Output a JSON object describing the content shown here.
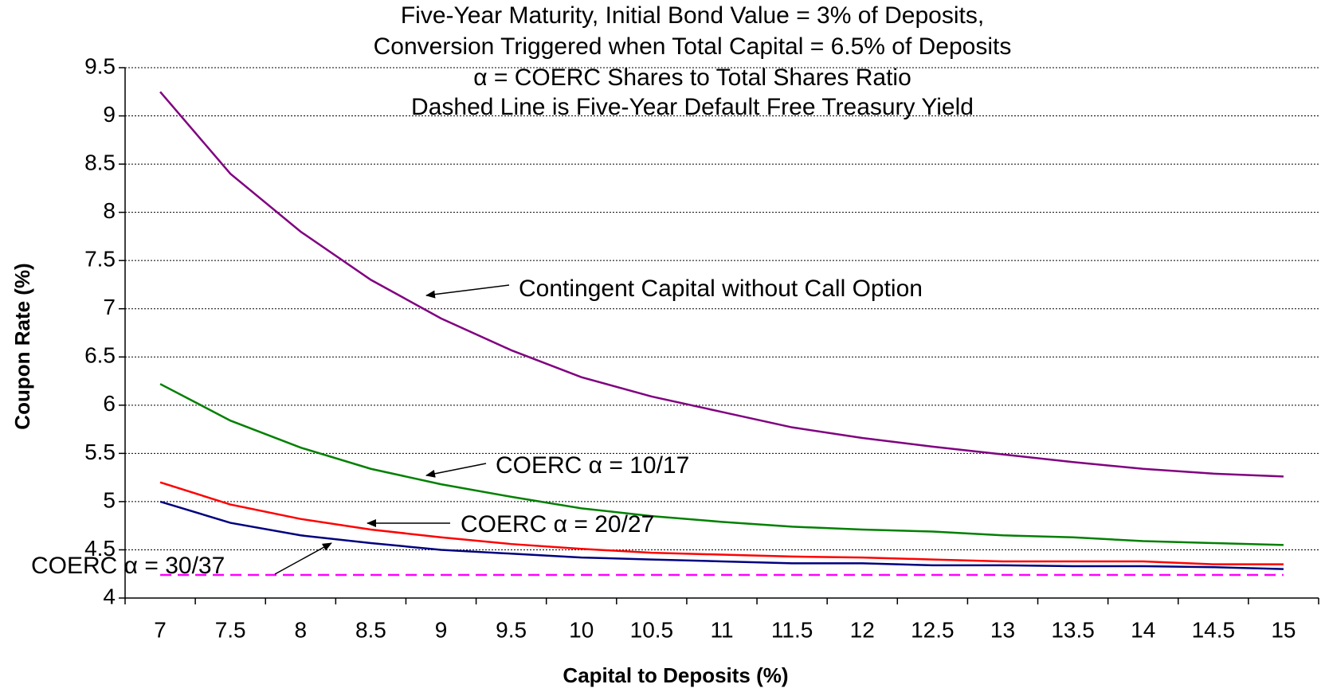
{
  "chart_data": {
    "type": "line",
    "title": [
      "Five-Year Maturity, Initial Bond Value = 3% of Deposits,",
      "Conversion Triggered when Total Capital = 6.5% of Deposits",
      "α = COERC Shares to Total Shares Ratio",
      "Dashed Line is Five-Year Default Free Treasury Yield"
    ],
    "x_label": "Capital to Deposits (%)",
    "y_label": "Coupon Rate (%)",
    "categories": [
      7,
      7.5,
      8,
      8.5,
      9,
      9.5,
      10,
      10.5,
      11,
      11.5,
      12,
      12.5,
      13,
      13.5,
      14,
      14.5,
      15
    ],
    "series": [
      {
        "color": "#800080",
        "values": [
          9.25,
          8.4,
          7.8,
          7.3,
          6.9,
          6.57,
          6.29,
          6.09,
          5.93,
          5.77,
          5.66,
          5.57,
          5.49,
          5.41,
          5.34,
          5.29,
          5.26
        ]
      },
      {
        "color": "#008000",
        "values": [
          6.22,
          5.84,
          5.56,
          5.34,
          5.18,
          5.05,
          4.93,
          4.85,
          4.79,
          4.74,
          4.71,
          4.69,
          4.65,
          4.63,
          4.59,
          4.57,
          4.55
        ]
      },
      {
        "color": "#ff0000",
        "values": [
          5.2,
          4.97,
          4.82,
          4.71,
          4.63,
          4.56,
          4.51,
          4.47,
          4.45,
          4.43,
          4.42,
          4.4,
          4.38,
          4.38,
          4.38,
          4.35,
          4.35
        ]
      },
      {
        "color": "#000080",
        "values": [
          5.0,
          4.78,
          4.65,
          4.57,
          4.5,
          4.46,
          4.42,
          4.4,
          4.38,
          4.36,
          4.36,
          4.34,
          4.34,
          4.33,
          4.33,
          4.32,
          4.3
        ]
      },
      {
        "color": "#ff00ff",
        "dashed": true,
        "values": [
          4.24,
          4.24,
          4.24,
          4.24,
          4.24,
          4.24,
          4.24,
          4.24,
          4.24,
          4.24,
          4.24,
          4.24,
          4.24,
          4.24,
          4.24,
          4.24,
          4.24
        ]
      }
    ],
    "annotations": [
      "Contingent Capital without Call Option",
      "COERC α = 10/17",
      "COERC α = 20/27",
      "COERC α = 30/37"
    ],
    "ylim": [
      4,
      9.5
    ],
    "yticks": [
      4,
      4.5,
      5,
      5.5,
      6,
      6.5,
      7,
      7.5,
      8,
      8.5,
      9,
      9.5
    ],
    "grid": true
  }
}
